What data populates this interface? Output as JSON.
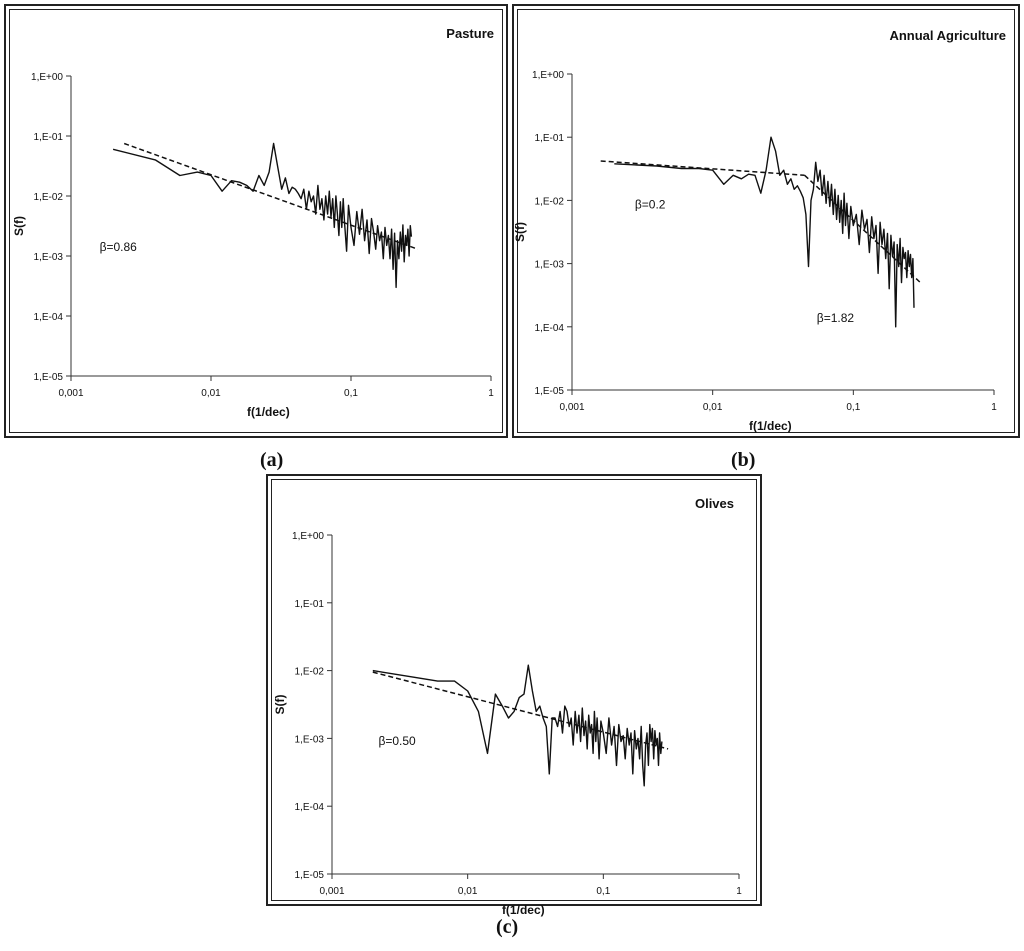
{
  "captions": [
    "(a)",
    "(b)",
    "(c)"
  ],
  "chart_data": [
    {
      "type": "line",
      "title": "Pasture",
      "xlabel": "f(1/dec)",
      "ylabel": "S(f)",
      "x_scale": "log",
      "y_scale": "log",
      "xlim": [
        0.001,
        1
      ],
      "ylim": [
        1e-05,
        1
      ],
      "x_ticks": [
        "0,001",
        "0,01",
        "0,1",
        "1"
      ],
      "y_ticks": [
        "1,E-05",
        "1,E-04",
        "1,E-03",
        "1,E-02",
        "1,E-01",
        "1,E+00"
      ],
      "annotations": [
        {
          "text": "β=0.86",
          "x": 0.0016,
          "y": 0.0012
        }
      ],
      "series": [
        {
          "style": "solid",
          "x": [
            0.002,
            0.004,
            0.006,
            0.008,
            0.01,
            0.012,
            0.014,
            0.016,
            0.018,
            0.02,
            0.022,
            0.024,
            0.026,
            0.028,
            0.03,
            0.032,
            0.034,
            0.036,
            0.038,
            0.04,
            0.042,
            0.044,
            0.046,
            0.048,
            0.05,
            0.052,
            0.054,
            0.056,
            0.058,
            0.06,
            0.062,
            0.064,
            0.066,
            0.068,
            0.07,
            0.072,
            0.074,
            0.076,
            0.078,
            0.08,
            0.082,
            0.084,
            0.086,
            0.088,
            0.09,
            0.093,
            0.096,
            0.1,
            0.105,
            0.11,
            0.115,
            0.12,
            0.125,
            0.13,
            0.135,
            0.14,
            0.145,
            0.15,
            0.155,
            0.16,
            0.165,
            0.17,
            0.175,
            0.18,
            0.185,
            0.19,
            0.195,
            0.2,
            0.205,
            0.21,
            0.215,
            0.22,
            0.225,
            0.23,
            0.235,
            0.24,
            0.245,
            0.25,
            0.255,
            0.26,
            0.265,
            0.27
          ],
          "y": [
            0.06,
            0.04,
            0.022,
            0.025,
            0.022,
            0.012,
            0.018,
            0.017,
            0.015,
            0.012,
            0.022,
            0.015,
            0.025,
            0.075,
            0.03,
            0.013,
            0.02,
            0.011,
            0.014,
            0.013,
            0.011,
            0.009,
            0.013,
            0.006,
            0.012,
            0.008,
            0.01,
            0.005,
            0.015,
            0.006,
            0.009,
            0.004,
            0.01,
            0.005,
            0.012,
            0.0045,
            0.009,
            0.003,
            0.01,
            0.005,
            0.0022,
            0.008,
            0.003,
            0.009,
            0.0035,
            0.0012,
            0.007,
            0.003,
            0.0015,
            0.0055,
            0.0023,
            0.006,
            0.0018,
            0.004,
            0.0011,
            0.0042,
            0.0025,
            0.0013,
            0.0032,
            0.0018,
            0.0025,
            0.0009,
            0.003,
            0.0015,
            0.0022,
            0.0009,
            0.0028,
            0.0006,
            0.0024,
            0.0003,
            0.0018,
            0.0009,
            0.0025,
            0.0012,
            0.0033,
            0.0008,
            0.0022,
            0.0015,
            0.0028,
            0.001,
            0.0032,
            0.0021
          ]
        },
        {
          "style": "dashed",
          "x": [
            0.0024,
            0.3
          ],
          "y": [
            0.075,
            0.0013
          ]
        }
      ]
    },
    {
      "type": "line",
      "title": "Annual Agriculture",
      "xlabel": "f(1/dec)",
      "ylabel": "S(f)",
      "x_scale": "log",
      "y_scale": "log",
      "xlim": [
        0.001,
        1
      ],
      "ylim": [
        1e-05,
        1
      ],
      "x_ticks": [
        "0,001",
        "0,01",
        "0,1",
        "1"
      ],
      "y_ticks": [
        "1,E-05",
        "1,E-04",
        "1,E-03",
        "1,E-02",
        "1,E-01",
        "1,E+00"
      ],
      "annotations": [
        {
          "text": "β=0.2",
          "x": 0.0028,
          "y": 0.0075
        },
        {
          "text": "β=1.82",
          "x": 0.055,
          "y": 0.00012
        }
      ],
      "series": [
        {
          "style": "solid",
          "x": [
            0.002,
            0.004,
            0.006,
            0.008,
            0.01,
            0.012,
            0.014,
            0.016,
            0.018,
            0.02,
            0.022,
            0.024,
            0.026,
            0.028,
            0.03,
            0.032,
            0.034,
            0.036,
            0.038,
            0.04,
            0.042,
            0.044,
            0.046,
            0.048,
            0.05,
            0.052,
            0.054,
            0.056,
            0.058,
            0.06,
            0.062,
            0.064,
            0.066,
            0.068,
            0.07,
            0.072,
            0.074,
            0.076,
            0.078,
            0.08,
            0.082,
            0.084,
            0.086,
            0.088,
            0.09,
            0.093,
            0.096,
            0.1,
            0.105,
            0.11,
            0.115,
            0.12,
            0.125,
            0.13,
            0.135,
            0.14,
            0.145,
            0.15,
            0.155,
            0.16,
            0.165,
            0.17,
            0.175,
            0.18,
            0.185,
            0.19,
            0.195,
            0.2,
            0.205,
            0.21,
            0.215,
            0.22,
            0.225,
            0.23,
            0.235,
            0.24,
            0.245,
            0.25,
            0.255,
            0.26,
            0.265,
            0.27
          ],
          "y": [
            0.038,
            0.035,
            0.032,
            0.032,
            0.03,
            0.018,
            0.025,
            0.022,
            0.026,
            0.025,
            0.013,
            0.03,
            0.1,
            0.06,
            0.025,
            0.03,
            0.018,
            0.022,
            0.015,
            0.017,
            0.014,
            0.011,
            0.006,
            0.0009,
            0.01,
            0.015,
            0.04,
            0.02,
            0.03,
            0.012,
            0.025,
            0.009,
            0.02,
            0.008,
            0.018,
            0.006,
            0.015,
            0.005,
            0.012,
            0.0045,
            0.01,
            0.003,
            0.013,
            0.004,
            0.009,
            0.0025,
            0.008,
            0.004,
            0.006,
            0.002,
            0.007,
            0.0035,
            0.005,
            0.0015,
            0.0055,
            0.0025,
            0.004,
            0.0007,
            0.0045,
            0.002,
            0.0035,
            0.0012,
            0.003,
            0.0004,
            0.0028,
            0.0013,
            0.0022,
            0.0001,
            0.002,
            0.0009,
            0.0025,
            0.0005,
            0.0018,
            0.0012,
            0.0015,
            0.0006,
            0.0016,
            0.0009,
            0.0014,
            0.0006,
            0.0012,
            0.0002
          ]
        },
        {
          "style": "dashed",
          "x": [
            0.0016,
            0.045
          ],
          "y": [
            0.042,
            0.025
          ]
        },
        {
          "style": "dashed",
          "x": [
            0.045,
            0.3
          ],
          "y": [
            0.025,
            0.0005
          ]
        }
      ]
    },
    {
      "type": "line",
      "title": "Olives",
      "xlabel": "f(1/dec)",
      "ylabel": "S(f)",
      "x_scale": "log",
      "y_scale": "log",
      "xlim": [
        0.001,
        1
      ],
      "ylim": [
        1e-05,
        1
      ],
      "x_ticks": [
        "0,001",
        "0,01",
        "0,1",
        "1"
      ],
      "y_ticks": [
        "1,E-05",
        "1,E-04",
        "1,E-03",
        "1,E-02",
        "1,E-01",
        "1,E+00"
      ],
      "annotations": [
        {
          "text": "β=0.50",
          "x": 0.0022,
          "y": 0.0008
        }
      ],
      "series": [
        {
          "style": "solid",
          "x": [
            0.002,
            0.004,
            0.006,
            0.008,
            0.01,
            0.012,
            0.014,
            0.016,
            0.018,
            0.02,
            0.022,
            0.024,
            0.026,
            0.028,
            0.03,
            0.032,
            0.034,
            0.036,
            0.038,
            0.04,
            0.042,
            0.044,
            0.046,
            0.048,
            0.05,
            0.052,
            0.054,
            0.056,
            0.058,
            0.06,
            0.062,
            0.064,
            0.066,
            0.068,
            0.07,
            0.072,
            0.074,
            0.076,
            0.078,
            0.08,
            0.082,
            0.084,
            0.086,
            0.088,
            0.09,
            0.093,
            0.096,
            0.1,
            0.105,
            0.11,
            0.115,
            0.12,
            0.125,
            0.13,
            0.135,
            0.14,
            0.145,
            0.15,
            0.155,
            0.16,
            0.165,
            0.17,
            0.175,
            0.18,
            0.185,
            0.19,
            0.195,
            0.2,
            0.205,
            0.21,
            0.215,
            0.22,
            0.225,
            0.23,
            0.235,
            0.24,
            0.245,
            0.25,
            0.255,
            0.26,
            0.265,
            0.27
          ],
          "y": [
            0.01,
            0.008,
            0.007,
            0.007,
            0.005,
            0.0025,
            0.0006,
            0.0045,
            0.003,
            0.002,
            0.0025,
            0.004,
            0.0045,
            0.012,
            0.005,
            0.0025,
            0.003,
            0.002,
            0.0015,
            0.0003,
            0.002,
            0.002,
            0.0015,
            0.0025,
            0.0012,
            0.003,
            0.0025,
            0.0015,
            0.002,
            0.0008,
            0.0025,
            0.0012,
            0.0022,
            0.0009,
            0.0028,
            0.0011,
            0.0018,
            0.0007,
            0.0022,
            0.0012,
            0.0016,
            0.0006,
            0.0025,
            0.0009,
            0.002,
            0.0005,
            0.0018,
            0.0012,
            0.0006,
            0.002,
            0.0008,
            0.0015,
            0.0004,
            0.0016,
            0.0009,
            0.0011,
            0.0005,
            0.0014,
            0.0008,
            0.0012,
            0.0003,
            0.0013,
            0.0007,
            0.001,
            0.0005,
            0.0015,
            0.0004,
            0.0002,
            0.0008,
            0.0012,
            0.0004,
            0.0016,
            0.0009,
            0.0014,
            0.0005,
            0.0013,
            0.0008,
            0.001,
            0.0004,
            0.0012,
            0.0006,
            0.0009
          ]
        },
        {
          "style": "dashed",
          "x": [
            0.002,
            0.3
          ],
          "y": [
            0.0095,
            0.0007
          ]
        }
      ]
    }
  ]
}
